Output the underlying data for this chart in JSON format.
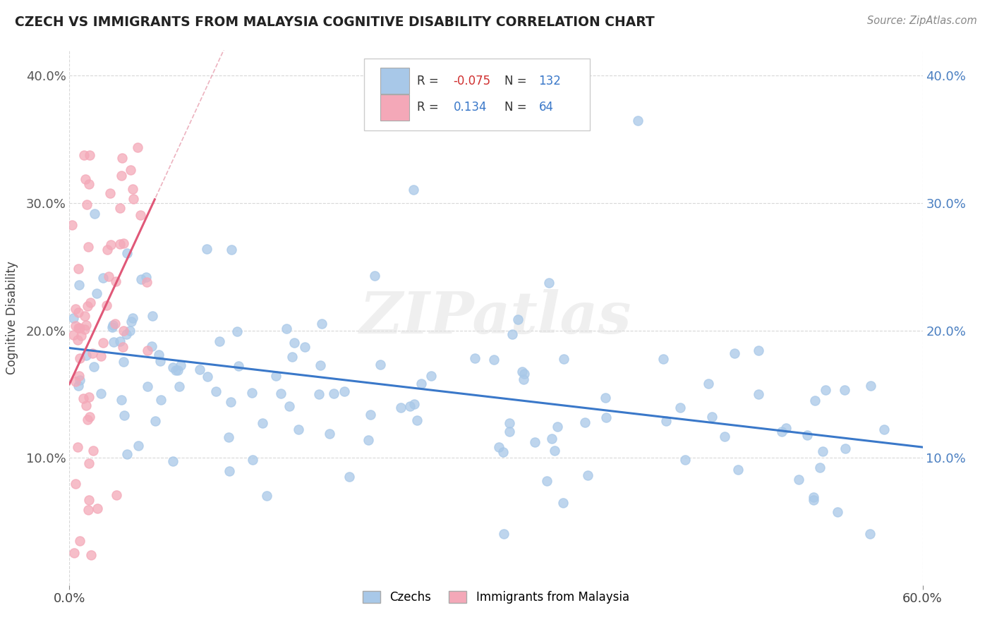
{
  "title": "CZECH VS IMMIGRANTS FROM MALAYSIA COGNITIVE DISABILITY CORRELATION CHART",
  "source": "Source: ZipAtlas.com",
  "ylabel": "Cognitive Disability",
  "x_min": 0.0,
  "x_max": 0.6,
  "y_min": 0.0,
  "y_max": 0.42,
  "yticks": [
    0.1,
    0.2,
    0.3,
    0.4
  ],
  "ytick_labels": [
    "10.0%",
    "20.0%",
    "30.0%",
    "40.0%"
  ],
  "xticks": [
    0.0,
    0.6
  ],
  "xtick_labels": [
    "0.0%",
    "60.0%"
  ],
  "watermark": "ZIPatlas",
  "czech_color": "#a8c8e8",
  "malaysia_color": "#f4a8b8",
  "czech_line_color": "#3a78c9",
  "malaysia_line_color": "#e05878",
  "malaysia_dash_color": "#e8a0b0",
  "czech_R": -0.075,
  "czech_N": 132,
  "malaysia_R": 0.134,
  "malaysia_N": 64,
  "legend_labels": [
    "Czechs",
    "Immigrants from Malaysia"
  ],
  "background_color": "#ffffff",
  "grid_color": "#d8d8d8"
}
